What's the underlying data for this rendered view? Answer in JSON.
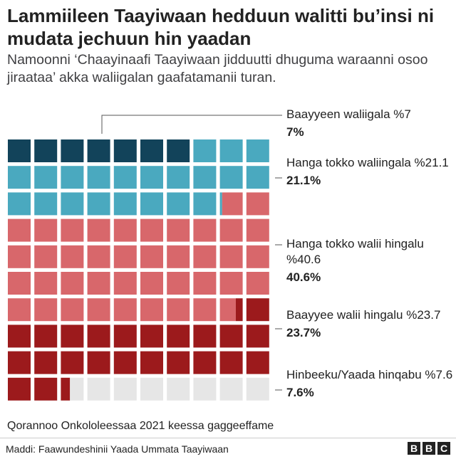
{
  "header": {
    "title": "Lammiileen Taayiwaan hedduun walitti bu’insi ni mudata jechuun hin yaadan",
    "subtitle": "Namoonni ‘Chaayinaafi Taayiwaan jidduutti dhuguma waraanni osoo jiraataa’ akka waliigalan gaafatamanii turan."
  },
  "chart_data": {
    "type": "waffle",
    "total": 100,
    "series": [
      {
        "name": "Baayyeen waliigala %7",
        "label": "7%",
        "value": 7.0,
        "color": "#12435a"
      },
      {
        "name": "Hanga tokko waliingala %21.1",
        "label": "21.1%",
        "value": 21.1,
        "color": "#4aa9bf"
      },
      {
        "name": "Hanga tokko walii hingalu %40.6",
        "label": "40.6%",
        "value": 40.6,
        "color": "#d8676b"
      },
      {
        "name": "Baayyee walii hingalu %23.7",
        "label": "23.7%",
        "value": 23.7,
        "color": "#9c1a1c"
      },
      {
        "name": "Hinbeeku/Yaada hinqabu %7.6",
        "label": "7.6%",
        "value": 7.6,
        "color": "#e6e6e6"
      }
    ]
  },
  "footer": {
    "note": "Qorannoo Onkololeessaa 2021 keessa gaggeeffame",
    "source": "Maddi: Faawundeshinii Yaada Ummata Taayiwaan",
    "brand": [
      "B",
      "B",
      "C"
    ]
  }
}
